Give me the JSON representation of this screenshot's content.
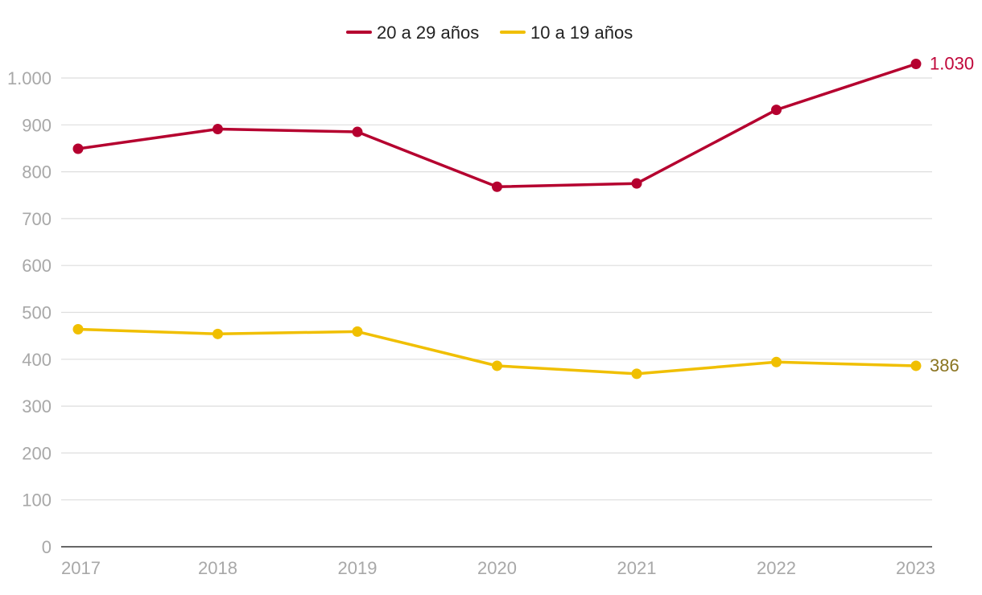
{
  "chart_data": {
    "type": "line",
    "title": "",
    "xlabel": "",
    "ylabel": "",
    "x": [
      "2017",
      "2018",
      "2019",
      "2020",
      "2021",
      "2022",
      "2023"
    ],
    "ylim": [
      0,
      1000
    ],
    "yticks": [
      0,
      100,
      200,
      300,
      400,
      500,
      600,
      700,
      800,
      900,
      1000
    ],
    "ytick_labels": [
      "0",
      "100",
      "200",
      "300",
      "400",
      "500",
      "600",
      "700",
      "800",
      "900",
      "1.000"
    ],
    "grid": true,
    "legend_position": "top-center",
    "series": [
      {
        "name": "20 a 29 años",
        "color": "#b5002f",
        "values": [
          849,
          891,
          885,
          768,
          775,
          932,
          1030
        ],
        "end_label": "1.030",
        "end_label_color": "#c0073a"
      },
      {
        "name": "10 a 19 años",
        "color": "#f0bf00",
        "values": [
          464,
          454,
          459,
          386,
          369,
          394,
          386
        ],
        "end_label": "386",
        "end_label_color": "#8a7420"
      }
    ]
  }
}
